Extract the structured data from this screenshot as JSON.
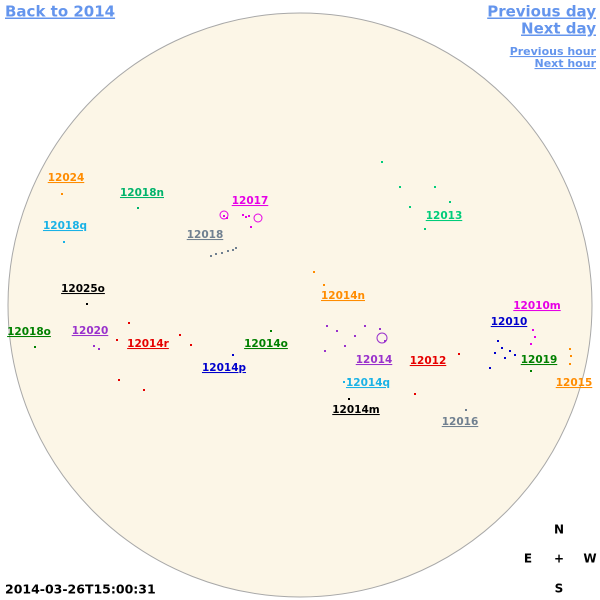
{
  "navigation": {
    "back": "Back to 2014",
    "previous_day": "Previous day",
    "next_day": "Next day",
    "previous_hour": "Previous hour",
    "next_hour": "Next hour"
  },
  "regions": [
    {
      "label": "12024",
      "color": "#ff8c00"
    },
    {
      "label": "12018n",
      "color": "#00b36b"
    },
    {
      "label": "12017",
      "color": "#e600e6"
    },
    {
      "label": "12018q",
      "color": "#1ab2e6"
    },
    {
      "label": "12018",
      "color": "#708090"
    },
    {
      "label": "12013",
      "color": "#00cc7a"
    },
    {
      "label": "12025o",
      "color": "#000000"
    },
    {
      "label": "12014n",
      "color": "#ff8c00"
    },
    {
      "label": "12010m",
      "color": "#e600e6"
    },
    {
      "label": "12010",
      "color": "#0000cc"
    },
    {
      "label": "12018o",
      "color": "#008000"
    },
    {
      "label": "12020",
      "color": "#9932cc"
    },
    {
      "label": "12014r",
      "color": "#e60000"
    },
    {
      "label": "12014o",
      "color": "#008000"
    },
    {
      "label": "12014",
      "color": "#9932cc"
    },
    {
      "label": "12012",
      "color": "#e60000"
    },
    {
      "label": "12019",
      "color": "#008000"
    },
    {
      "label": "12014p",
      "color": "#0000cc"
    },
    {
      "label": "12015",
      "color": "#ff8c00"
    },
    {
      "label": "12014q",
      "color": "#1ab2e6"
    },
    {
      "label": "12014m",
      "color": "#000000"
    },
    {
      "label": "12016",
      "color": "#708090"
    }
  ],
  "compass": {
    "north": "N",
    "east": "E",
    "center": "+",
    "west": "W",
    "south": "S"
  },
  "timestamp": "2014-03-26T15:00:31"
}
